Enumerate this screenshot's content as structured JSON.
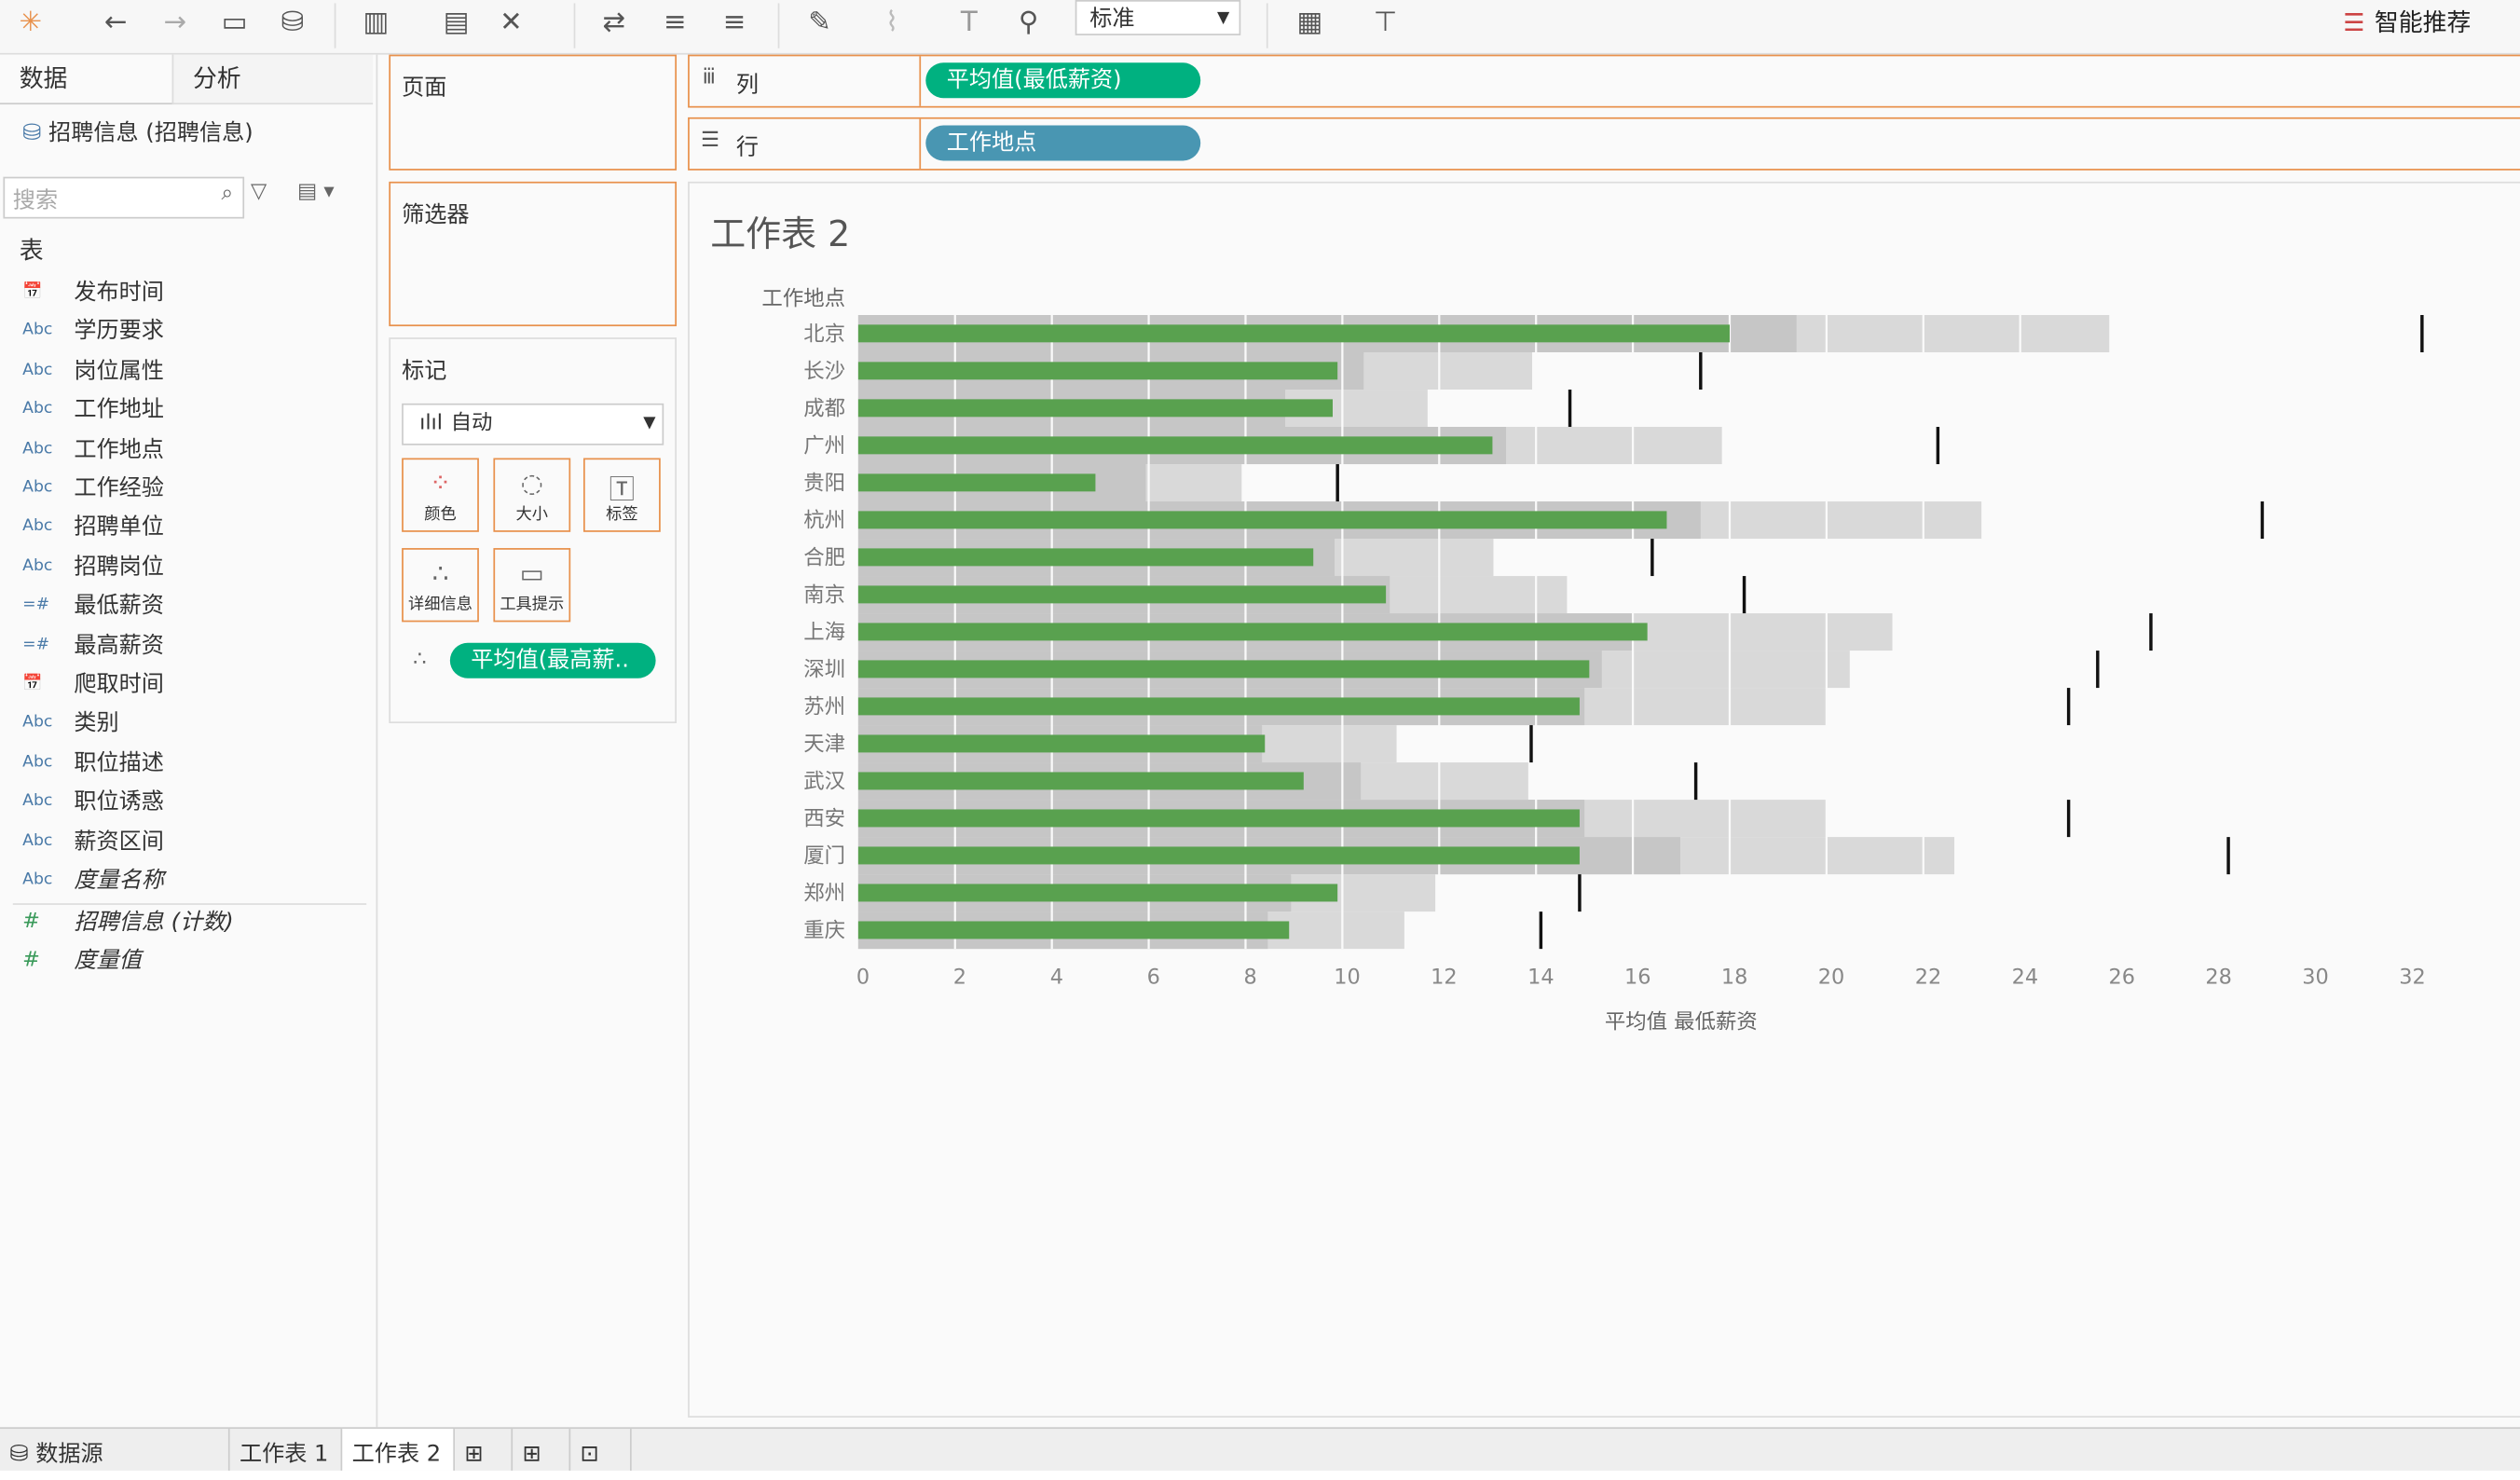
{
  "toolbar": {
    "mode_select": "标准",
    "smart_recommend": "智能推荐",
    "icons": [
      "tableau-logo-icon",
      "back-icon",
      "forward-icon",
      "save-icon",
      "new-datasource-icon",
      "new-worksheet-icon",
      "duplicate-icon",
      "clear-icon",
      "swap-icon",
      "sort-asc-icon",
      "sort-desc-icon",
      "highlight-icon",
      "group-icon",
      "label-icon",
      "pin-icon",
      "show-me-icon",
      "presentation-icon"
    ]
  },
  "left": {
    "tab_data": "数据",
    "tab_analysis": "分析",
    "datasource": "招聘信息 (招聘信息)",
    "search_placeholder": "搜索",
    "table_header": "表",
    "fields": [
      {
        "type": "date",
        "name": "发布时间"
      },
      {
        "type": "Abc",
        "name": "学历要求"
      },
      {
        "type": "Abc",
        "name": "岗位属性"
      },
      {
        "type": "Abc",
        "name": "工作地址"
      },
      {
        "type": "Abc",
        "name": "工作地点"
      },
      {
        "type": "Abc",
        "name": "工作经验"
      },
      {
        "type": "Abc",
        "name": "招聘单位"
      },
      {
        "type": "Abc",
        "name": "招聘岗位"
      },
      {
        "type": "=#",
        "name": "最低薪资"
      },
      {
        "type": "=#",
        "name": "最高薪资"
      },
      {
        "type": "date",
        "name": "爬取时间"
      },
      {
        "type": "Abc",
        "name": "类别"
      },
      {
        "type": "Abc",
        "name": "职位描述"
      },
      {
        "type": "Abc",
        "name": "职位诱惑"
      },
      {
        "type": "Abc",
        "name": "薪资区间"
      },
      {
        "type": "Abc",
        "name": "度量名称"
      }
    ],
    "measures": [
      {
        "type": "#",
        "name": "招聘信息 (计数)"
      },
      {
        "type": "#",
        "name": "度量值"
      }
    ]
  },
  "shelves": {
    "pages": "页面",
    "filters": "筛选器",
    "marks": "标记",
    "mark_type": "自动",
    "mark_buttons": [
      "颜色",
      "大小",
      "标签",
      "详细信息",
      "工具提示"
    ],
    "detail_pill": "平均值(最高薪..",
    "columns_label": "列",
    "columns_pill": "平均值(最低薪资)",
    "rows_label": "行",
    "rows_pill": "工作地点"
  },
  "colors": {
    "accent_orange": "#e8914c",
    "measure_pill": "#00b180",
    "dimension_pill": "#4996b2",
    "bar": "#59a14f"
  },
  "sheet": {
    "title": "工作表 2"
  },
  "chart_data": {
    "type": "bar",
    "subtype": "bullet",
    "row_header": "工作地点",
    "xlabel": "平均值 最低薪资",
    "xlim": [
      0,
      33
    ],
    "xticks": [
      0,
      2,
      4,
      6,
      8,
      10,
      12,
      14,
      16,
      18,
      20,
      22,
      24,
      26,
      28,
      30,
      32
    ],
    "categories": [
      "北京",
      "长沙",
      "成都",
      "广州",
      "贵阳",
      "杭州",
      "合肥",
      "南京",
      "上海",
      "深圳",
      "苏州",
      "天津",
      "武汉",
      "西安",
      "厦门",
      "郑州",
      "重庆"
    ],
    "series": [
      {
        "measure": "平均值(最低薪资)",
        "values": [
          18.0,
          9.9,
          9.8,
          13.1,
          4.9,
          16.7,
          9.4,
          10.9,
          16.3,
          15.1,
          14.9,
          8.4,
          9.2,
          14.9,
          14.9,
          9.9,
          8.9
        ]
      },
      {
        "measure": "平均值(最高薪资)",
        "values": [
          32.3,
          17.4,
          14.7,
          22.3,
          9.9,
          29.0,
          16.4,
          18.3,
          26.7,
          25.6,
          25.0,
          13.9,
          17.3,
          25.0,
          28.3,
          14.9,
          14.1
        ]
      }
    ],
    "distribution_bands": [
      0.6,
      0.8
    ],
    "grid": true
  },
  "bottom_tabs": {
    "datasource": "数据源",
    "sheets": [
      "工作表 1",
      "工作表 2"
    ],
    "active": "工作表 2"
  }
}
